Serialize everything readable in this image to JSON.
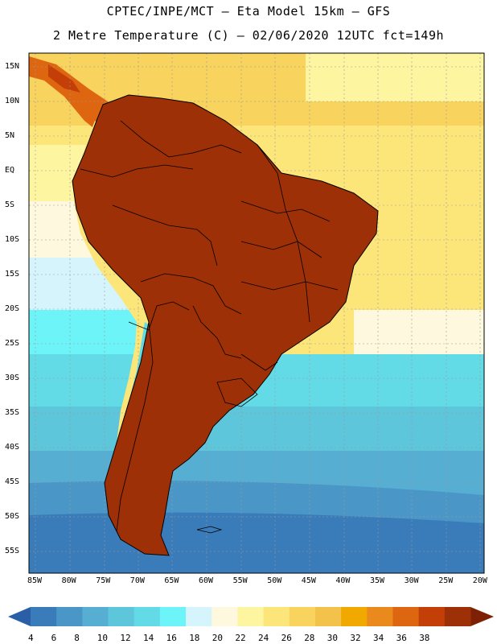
{
  "header": {
    "title_line1": "CPTEC/INPE/MCT –  Eta Model 15km – GFS",
    "title_line2": "2 Metre Temperature (C) – 02/06/2020 12UTC fct=149h"
  },
  "map": {
    "lat_labels": [
      "15N",
      "10N",
      "5N",
      "EQ",
      "5S",
      "10S",
      "15S",
      "20S",
      "25S",
      "30S",
      "35S",
      "40S",
      "45S",
      "50S",
      "55S"
    ],
    "lon_labels": [
      "85W",
      "80W",
      "75W",
      "70W",
      "65W",
      "60W",
      "55W",
      "50W",
      "45W",
      "40W",
      "35W",
      "30W",
      "25W",
      "20W"
    ]
  },
  "colorbar": {
    "unit": "C",
    "ticks": [
      "4",
      "6",
      "8",
      "10",
      "12",
      "14",
      "16",
      "18",
      "20",
      "22",
      "24",
      "26",
      "28",
      "30",
      "32",
      "34",
      "36",
      "38"
    ],
    "colors": [
      "#2a5fa8",
      "#3a7cba",
      "#4a97c7",
      "#56aed3",
      "#5ec6db",
      "#63dbe6",
      "#6cf4f8",
      "#d6f4fb",
      "#fdf8de",
      "#fdf5a0",
      "#fce67a",
      "#f8d35e",
      "#f2c24a",
      "#f1a900",
      "#ea8a1d",
      "#df6611",
      "#c43f08",
      "#9d3007",
      "#7e2005"
    ]
  }
}
